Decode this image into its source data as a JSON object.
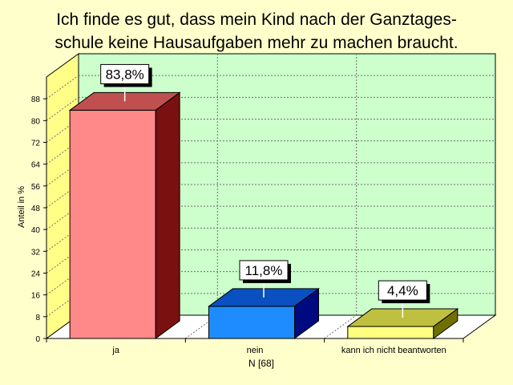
{
  "chart_data": {
    "type": "bar",
    "title_lines": [
      "Ich finde es gut, dass mein Kind nach der Ganztages-",
      "schule keine Hausaufgaben mehr zu machen braucht."
    ],
    "categories": [
      "ja",
      "nein",
      "kann ich nicht beantworten"
    ],
    "values": [
      83.8,
      11.8,
      4.4
    ],
    "value_labels": [
      "83,8%",
      "11,8%",
      "4,4%"
    ],
    "bar_colors": [
      {
        "front": "#ff8888",
        "top": "#c05050",
        "side": "#7a1010"
      },
      {
        "front": "#1e8cff",
        "top": "#0a50c0",
        "side": "#000a80"
      },
      {
        "front": "#ffff80",
        "top": "#c0c040",
        "side": "#707000"
      }
    ],
    "ylabel": "Anteil in %",
    "xlabel": "N [68]",
    "yticks": [
      0,
      8,
      16,
      24,
      32,
      40,
      48,
      56,
      64,
      72,
      80,
      88
    ],
    "ylim": [
      0,
      96
    ],
    "grid": true,
    "background_color": "#ffffcc",
    "plot_color": "#ccffcc",
    "left_wall_color": "#ffff88",
    "floor_color": "#ffffff"
  }
}
